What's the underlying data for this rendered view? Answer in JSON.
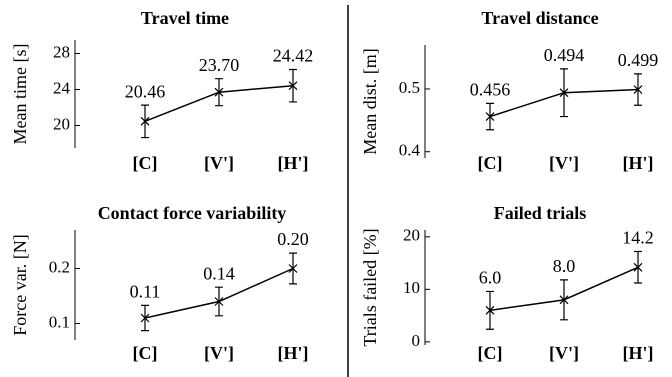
{
  "chart_data": [
    {
      "type": "line",
      "title": "Travel time",
      "y_label": "Mean time [s]",
      "categories": [
        "[C]",
        "[V']",
        "[H']"
      ],
      "values": [
        20.46,
        23.7,
        24.42
      ],
      "value_labels": [
        "20.46",
        "23.70",
        "24.42"
      ],
      "errors": [
        1.8,
        1.5,
        1.8
      ],
      "color": "#000000",
      "ylim": [
        17.5,
        29.5
      ],
      "yticks": [
        20,
        24,
        28
      ]
    },
    {
      "type": "line",
      "title": "Travel distance",
      "y_label": "Mean dist. [m]",
      "categories": [
        "[C]",
        "[V']",
        "[H']"
      ],
      "values": [
        0.456,
        0.494,
        0.499
      ],
      "errors": [
        0.021,
        0.038,
        0.025
      ],
      "color": "#000000",
      "ylim": [
        0.39,
        0.57
      ],
      "yticks": [
        0.4,
        0.5
      ]
    },
    {
      "type": "line",
      "title": "Contact force variability",
      "y_label": "Force var. [N]",
      "categories": [
        "[C]",
        "[V']",
        "[H']"
      ],
      "values": [
        0.11,
        0.14,
        0.2
      ],
      "value_labels": [
        "0.11",
        "0.14",
        "0.20"
      ],
      "errors": [
        0.023,
        0.026,
        0.028
      ],
      "color": "#000000",
      "ylim": [
        0.07,
        0.27
      ],
      "yticks": [
        0.1,
        0.2
      ]
    },
    {
      "type": "line",
      "title": "Failed trials",
      "y_label": "Trials failed [%]",
      "categories": [
        "[C]",
        "[V']",
        "[H']"
      ],
      "values": [
        6.0,
        8.0,
        14.2
      ],
      "value_labels": [
        "6.0",
        "8.0",
        "14.2"
      ],
      "errors": [
        3.6,
        3.8,
        3.0
      ],
      "color": "#000000",
      "ylim": [
        -0.6,
        21.3
      ],
      "yticks": [
        0,
        10,
        20
      ]
    }
  ]
}
